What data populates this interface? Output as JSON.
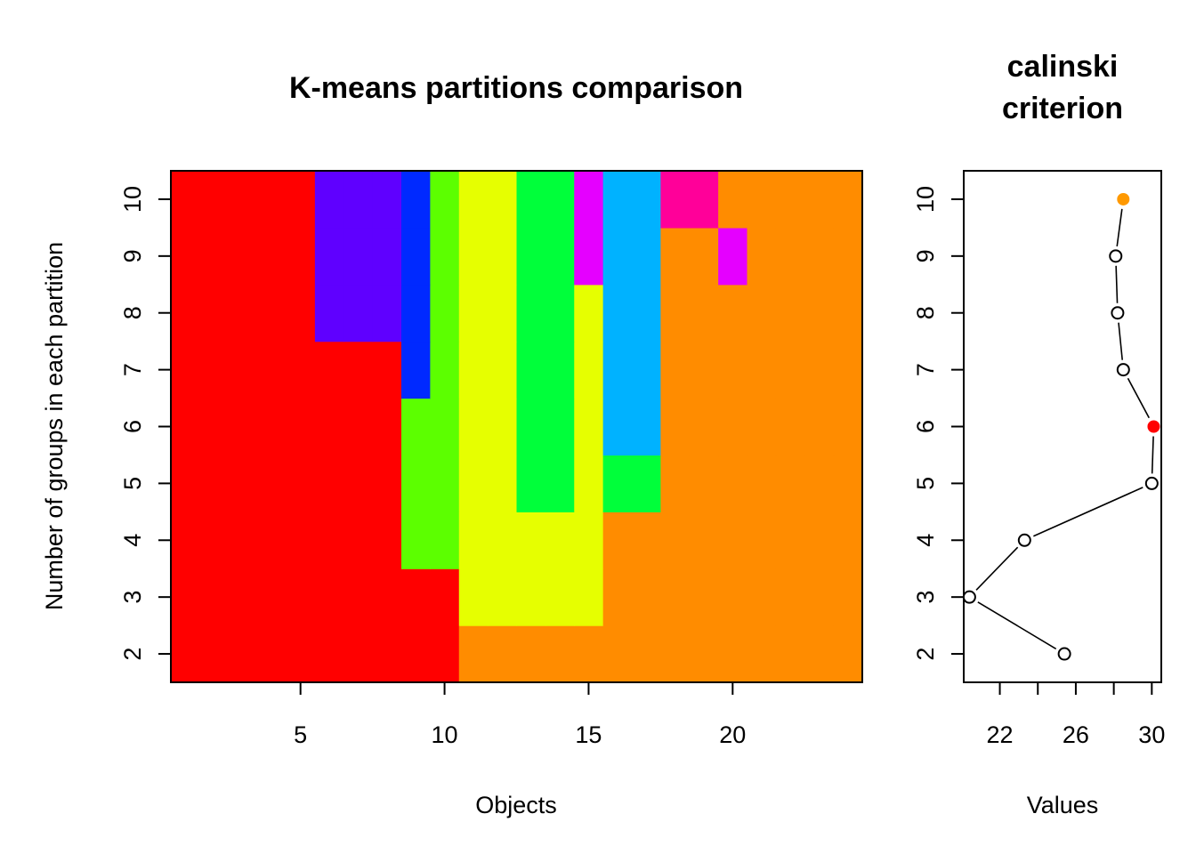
{
  "chart_data": [
    {
      "type": "heatmap",
      "title": "K-means partitions comparison",
      "xlabel": "Objects",
      "ylabel": "Number of groups in each partition",
      "x_ticks": [
        5,
        10,
        15,
        20
      ],
      "y_ticks": [
        2,
        3,
        4,
        5,
        6,
        7,
        8,
        9,
        10
      ],
      "xlim": [
        0.5,
        24.5
      ],
      "ylim": [
        1.5,
        10.5
      ],
      "objects": [
        1,
        2,
        3,
        4,
        5,
        6,
        7,
        8,
        9,
        10,
        11,
        12,
        13,
        14,
        15,
        16,
        17,
        18,
        19,
        20,
        21,
        22,
        23,
        24
      ],
      "partitions": [
        2,
        3,
        4,
        5,
        6,
        7,
        8,
        9,
        10
      ],
      "palette": [
        "#FF0000",
        "#FF8C00",
        "#E6FF00",
        "#5CFF00",
        "#00FF3A",
        "#00B2FF",
        "#0029FF",
        "#5F00FF",
        "#E500FF",
        "#FF0099"
      ],
      "assignments": [
        [
          1,
          1,
          1,
          1,
          1,
          1,
          1,
          1,
          1,
          1,
          2,
          2,
          2,
          2,
          2,
          2,
          2,
          2,
          2,
          2,
          2,
          2,
          2,
          2
        ],
        [
          1,
          1,
          1,
          1,
          1,
          1,
          1,
          1,
          1,
          1,
          3,
          3,
          3,
          3,
          3,
          2,
          2,
          2,
          2,
          2,
          2,
          2,
          2,
          2
        ],
        [
          1,
          1,
          1,
          1,
          1,
          1,
          1,
          1,
          4,
          4,
          3,
          3,
          3,
          3,
          3,
          2,
          2,
          2,
          2,
          2,
          2,
          2,
          2,
          2
        ],
        [
          1,
          1,
          1,
          1,
          1,
          1,
          1,
          1,
          4,
          4,
          3,
          3,
          5,
          5,
          3,
          5,
          5,
          2,
          2,
          2,
          2,
          2,
          2,
          2
        ],
        [
          1,
          1,
          1,
          1,
          1,
          1,
          1,
          1,
          4,
          4,
          3,
          3,
          5,
          5,
          3,
          6,
          6,
          2,
          2,
          2,
          2,
          2,
          2,
          2
        ],
        [
          1,
          1,
          1,
          1,
          1,
          1,
          1,
          1,
          7,
          4,
          3,
          3,
          5,
          5,
          3,
          6,
          6,
          2,
          2,
          2,
          2,
          2,
          2,
          2
        ],
        [
          1,
          1,
          1,
          1,
          1,
          8,
          8,
          8,
          7,
          4,
          3,
          3,
          5,
          5,
          3,
          6,
          6,
          2,
          2,
          2,
          2,
          2,
          2,
          2
        ],
        [
          1,
          1,
          1,
          1,
          1,
          8,
          8,
          8,
          7,
          4,
          3,
          3,
          5,
          5,
          9,
          6,
          6,
          2,
          2,
          9,
          2,
          2,
          2,
          2
        ],
        [
          1,
          1,
          1,
          1,
          1,
          8,
          8,
          8,
          7,
          4,
          3,
          3,
          5,
          5,
          9,
          6,
          6,
          10,
          10,
          2,
          2,
          2,
          2,
          2
        ]
      ]
    },
    {
      "type": "line",
      "title": [
        "calinski",
        "criterion"
      ],
      "xlabel": "Values",
      "ylabel": "",
      "x_ticks": [
        22,
        26,
        30
      ],
      "x_minor_ticks": [
        22,
        24,
        26,
        28,
        30
      ],
      "y_ticks": [
        2,
        3,
        4,
        5,
        6,
        7,
        8,
        9,
        10
      ],
      "xlim": [
        20.1,
        30.5
      ],
      "ylim": [
        1.5,
        10.5
      ],
      "points": [
        {
          "groups": 2,
          "value": 25.4
        },
        {
          "groups": 3,
          "value": 20.4
        },
        {
          "groups": 4,
          "value": 23.3
        },
        {
          "groups": 5,
          "value": 30.0
        },
        {
          "groups": 6,
          "value": 30.1
        },
        {
          "groups": 7,
          "value": 28.5
        },
        {
          "groups": 8,
          "value": 28.2
        },
        {
          "groups": 9,
          "value": 28.1
        },
        {
          "groups": 10,
          "value": 28.5
        }
      ],
      "highlight": [
        {
          "groups": 6,
          "color": "#FF0000"
        },
        {
          "groups": 10,
          "color": "#FF9900"
        }
      ]
    }
  ]
}
